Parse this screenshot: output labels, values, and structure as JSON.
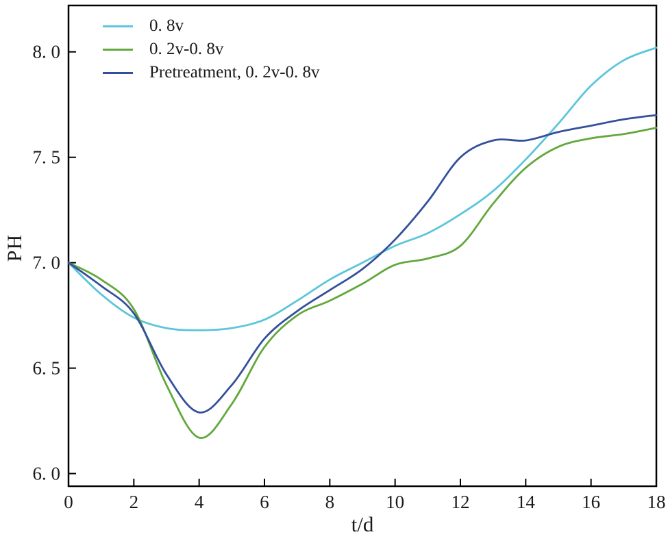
{
  "chart_data": {
    "type": "line",
    "title": "",
    "xlabel": "t/d",
    "ylabel": "PH",
    "grid": false,
    "legend_position": "top-left",
    "xlim": [
      0,
      18
    ],
    "ylim": [
      5.94,
      8.22
    ],
    "xticks": {
      "values": [
        0,
        2,
        4,
        6,
        8,
        10,
        12,
        14,
        16,
        18
      ],
      "labels": [
        "0",
        "2",
        "4",
        "6",
        "8",
        "10",
        "12",
        "14",
        "16",
        "18"
      ]
    },
    "yticks": {
      "values": [
        6.0,
        6.5,
        7.0,
        7.5,
        8.0
      ],
      "labels": [
        "6. 0",
        "6. 5",
        "7. 0",
        "7. 5",
        "8. 0"
      ]
    },
    "x": [
      0,
      1,
      2,
      3,
      4,
      5,
      6,
      7,
      8,
      9,
      10,
      11,
      12,
      13,
      14,
      15,
      16,
      17,
      18
    ],
    "series": [
      {
        "name": "0. 8v",
        "color": "#5cc5da",
        "values": [
          7.0,
          6.85,
          6.74,
          6.69,
          6.68,
          6.69,
          6.73,
          6.82,
          6.92,
          7.0,
          7.08,
          7.14,
          7.23,
          7.34,
          7.49,
          7.66,
          7.84,
          7.96,
          8.02
        ]
      },
      {
        "name": "0. 2v-0. 8v",
        "color": "#62a83d",
        "values": [
          7.0,
          6.92,
          6.78,
          6.42,
          6.17,
          6.33,
          6.6,
          6.75,
          6.82,
          6.9,
          6.99,
          7.02,
          7.08,
          7.28,
          7.45,
          7.55,
          7.59,
          7.61,
          7.64
        ]
      },
      {
        "name": "Pretreatment, 0. 2v-0. 8v",
        "color": "#34509c",
        "values": [
          7.0,
          6.89,
          6.76,
          6.47,
          6.29,
          6.42,
          6.64,
          6.77,
          6.87,
          6.97,
          7.11,
          7.29,
          7.5,
          7.58,
          7.58,
          7.62,
          7.65,
          7.68,
          7.7
        ]
      }
    ]
  }
}
